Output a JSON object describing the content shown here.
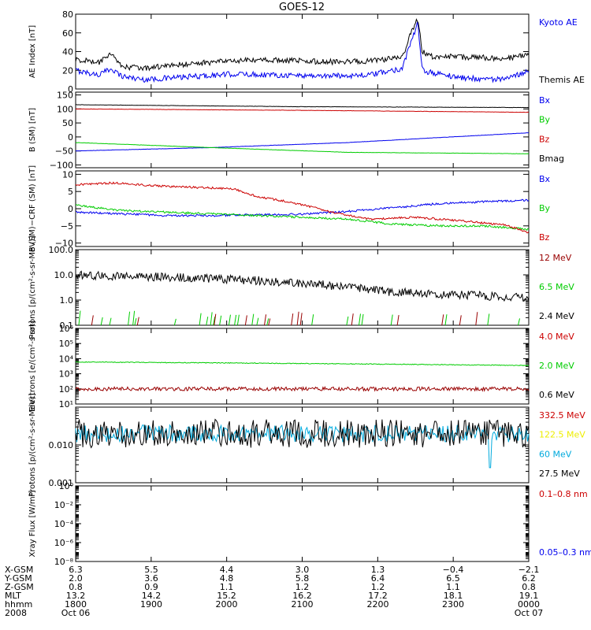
{
  "title": "GOES-12",
  "colors": {
    "black": "#000000",
    "blue": "#0000ee",
    "red": "#cc0000",
    "green": "#00cc00",
    "darkred": "#990000",
    "cyan": "#00aadd",
    "yellow": "#eeee00"
  },
  "chart_data": [
    {
      "type": "line",
      "ylabel": "AE Index [nT]",
      "ylim": [
        0,
        80
      ],
      "yticks": [
        {
          "v": 0,
          "t": "0"
        },
        {
          "v": 20,
          "t": "20"
        },
        {
          "v": 40,
          "t": "40"
        },
        {
          "v": 60,
          "t": "60"
        },
        {
          "v": 80,
          "t": "80"
        }
      ],
      "series": [
        {
          "name": "Kyoto AE",
          "color": "blue",
          "x": [
            0,
            0.05,
            0.08,
            0.1,
            0.15,
            0.25,
            0.35,
            0.45,
            0.55,
            0.65,
            0.72,
            0.74,
            0.755,
            0.765,
            0.78,
            0.85,
            0.95,
            1.0
          ],
          "y": [
            20,
            15,
            22,
            14,
            10,
            13,
            16,
            15,
            14,
            15,
            22,
            50,
            70,
            20,
            18,
            12,
            10,
            20
          ]
        },
        {
          "name": "Themis AE",
          "color": "black",
          "x": [
            0,
            0.05,
            0.08,
            0.1,
            0.15,
            0.25,
            0.35,
            0.45,
            0.55,
            0.65,
            0.72,
            0.74,
            0.755,
            0.765,
            0.78,
            0.85,
            0.95,
            1.0
          ],
          "y": [
            32,
            28,
            37,
            24,
            22,
            27,
            30,
            31,
            29,
            30,
            33,
            60,
            76,
            40,
            35,
            34,
            33,
            36
          ]
        }
      ]
    },
    {
      "type": "line",
      "ylabel": "B (SM) [nT]",
      "ylim": [
        -110,
        160
      ],
      "yticks": [
        {
          "v": -100,
          "t": "−100"
        },
        {
          "v": -50,
          "t": "−50"
        },
        {
          "v": 0,
          "t": "0"
        },
        {
          "v": 50,
          "t": "50"
        },
        {
          "v": 100,
          "t": "100"
        },
        {
          "v": 150,
          "t": "150"
        }
      ],
      "series": [
        {
          "name": "Bx",
          "color": "blue",
          "x": [
            0,
            0.3,
            0.6,
            1.0
          ],
          "y": [
            -50,
            -38,
            -20,
            15
          ]
        },
        {
          "name": "By",
          "color": "green",
          "x": [
            0,
            0.3,
            0.6,
            1.0
          ],
          "y": [
            -20,
            -38,
            -55,
            -60
          ]
        },
        {
          "name": "Bz",
          "color": "red",
          "x": [
            0,
            0.5,
            1.0
          ],
          "y": [
            100,
            95,
            88
          ]
        },
        {
          "name": "Bmag",
          "color": "black",
          "x": [
            0,
            0.5,
            1.0
          ],
          "y": [
            115,
            108,
            105
          ]
        }
      ]
    },
    {
      "type": "line",
      "ylabel": "B (SM)−CRF (SM) [nT]",
      "ylim": [
        -11,
        11
      ],
      "yticks": [
        {
          "v": -10,
          "t": "−10"
        },
        {
          "v": -5,
          "t": "−5"
        },
        {
          "v": 0,
          "t": "0"
        },
        {
          "v": 5,
          "t": "5"
        },
        {
          "v": 10,
          "t": "10"
        }
      ],
      "series": [
        {
          "name": "Bx",
          "color": "blue",
          "x": [
            0,
            0.1,
            0.2,
            0.3,
            0.4,
            0.5,
            0.58,
            0.65,
            0.72,
            0.8,
            0.9,
            1.0
          ],
          "y": [
            -1,
            -1.5,
            -2,
            -2,
            -1.8,
            -1.6,
            -1,
            -0.3,
            0.5,
            1.5,
            2,
            2.5
          ]
        },
        {
          "name": "By",
          "color": "green",
          "x": [
            0,
            0.1,
            0.2,
            0.3,
            0.4,
            0.5,
            0.6,
            0.7,
            0.8,
            0.9,
            1.0
          ],
          "y": [
            1,
            -0.5,
            -1,
            -1.5,
            -2,
            -2.5,
            -3,
            -4.5,
            -5,
            -5,
            -6
          ]
        },
        {
          "name": "Bz",
          "color": "red",
          "x": [
            0,
            0.08,
            0.2,
            0.35,
            0.4,
            0.47,
            0.52,
            0.58,
            0.65,
            0.75,
            0.85,
            0.95,
            1.0
          ],
          "y": [
            7,
            7.5,
            6.5,
            5.8,
            3.5,
            2,
            0.5,
            -1.5,
            -3,
            -2.5,
            -3.5,
            -4.8,
            -7
          ]
        }
      ]
    },
    {
      "type": "line",
      "log": true,
      "ylabel": "Protons [p/(cm²-s-sr-MeV)]",
      "ylim": [
        0.1,
        100
      ],
      "yticks": [
        {
          "v": 0.1,
          "t": "0.1"
        },
        {
          "v": 1,
          "t": "1.0"
        },
        {
          "v": 10,
          "t": "10.0"
        },
        {
          "v": 100,
          "t": "100.0"
        }
      ],
      "series": [
        {
          "name": "12 MeV",
          "color": "darkred"
        },
        {
          "name": "6.5 MeV",
          "color": "green"
        },
        {
          "name": "2.4 MeV",
          "color": "black",
          "x": [
            0,
            0.2,
            0.4,
            0.55,
            0.7,
            0.85,
            1.0
          ],
          "y": [
            10,
            8,
            6,
            4,
            2,
            1.6,
            1.2
          ]
        }
      ]
    },
    {
      "type": "line",
      "log": true,
      "ylabel": "Electrons [e/(cm²-s-sr)]",
      "ylim": [
        10,
        1000000
      ],
      "yticks": [
        {
          "v": 10,
          "t": "10¹"
        },
        {
          "v": 100,
          "t": "10²"
        },
        {
          "v": 1000,
          "t": "10³"
        },
        {
          "v": 10000,
          "t": "10⁴"
        },
        {
          "v": 100000,
          "t": "10⁵"
        },
        {
          "v": 1000000,
          "t": "10⁶"
        }
      ],
      "series": [
        {
          "name": "4.0 MeV",
          "color": "red"
        },
        {
          "name": "2.0 MeV",
          "color": "green",
          "x": [
            0,
            1.0
          ],
          "y": [
            6000,
            3500
          ]
        },
        {
          "name": "0.6 MeV",
          "color": "black"
        }
      ]
    },
    {
      "type": "line",
      "log": true,
      "ylabel": "Protons [p/(cm²-s-sr-MeV)]",
      "ylim": [
        0.001,
        0.1
      ],
      "yticks": [
        {
          "v": 0.001,
          "t": "0.001"
        },
        {
          "v": 0.01,
          "t": "0.010"
        }
      ],
      "series": [
        {
          "name": "332.5 MeV",
          "color": "red"
        },
        {
          "name": "122.5 MeV",
          "color": "yellow"
        },
        {
          "name": "60 MeV",
          "color": "cyan"
        },
        {
          "name": "27.5 MeV",
          "color": "black"
        }
      ]
    },
    {
      "type": "line",
      "log": true,
      "ylabel": "Xray Flux [W/m²]",
      "ylim": [
        1e-08,
        1
      ],
      "yticks": [
        {
          "v": 1e-08,
          "t": "10⁻⁸"
        },
        {
          "v": 1e-06,
          "t": "10⁻⁶"
        },
        {
          "v": 0.0001,
          "t": "10⁻⁴"
        },
        {
          "v": 0.01,
          "t": "10⁻²"
        },
        {
          "v": 1,
          "t": "10⁰"
        }
      ],
      "series": [
        {
          "name": "0.1–0.8 nm",
          "color": "red"
        },
        {
          "name": "0.05–0.3 nm",
          "color": "blue"
        }
      ]
    }
  ],
  "x_axis": {
    "row_labels": [
      "X-GSM",
      "Y-GSM",
      "Z-GSM",
      "MLT",
      "hhmm",
      "2008"
    ],
    "columns": [
      {
        "x": 0.0,
        "values": [
          "6.3",
          "2.0",
          "0.8",
          "13.2",
          "1800",
          "Oct 06"
        ]
      },
      {
        "x": 0.167,
        "values": [
          "5.5",
          "3.6",
          "0.9",
          "14.2",
          "1900",
          ""
        ]
      },
      {
        "x": 0.333,
        "values": [
          "4.4",
          "4.8",
          "1.1",
          "15.2",
          "2000",
          ""
        ]
      },
      {
        "x": 0.5,
        "values": [
          "3.0",
          "5.8",
          "1.2",
          "16.2",
          "2100",
          ""
        ]
      },
      {
        "x": 0.667,
        "values": [
          "1.3",
          "6.4",
          "1.2",
          "17.2",
          "2200",
          ""
        ]
      },
      {
        "x": 0.833,
        "values": [
          "−0.4",
          "6.5",
          "1.1",
          "18.1",
          "2300",
          ""
        ]
      },
      {
        "x": 1.0,
        "values": [
          "−2.1",
          "6.2",
          "0.8",
          "19.1",
          "0000",
          "Oct 07"
        ]
      }
    ]
  }
}
